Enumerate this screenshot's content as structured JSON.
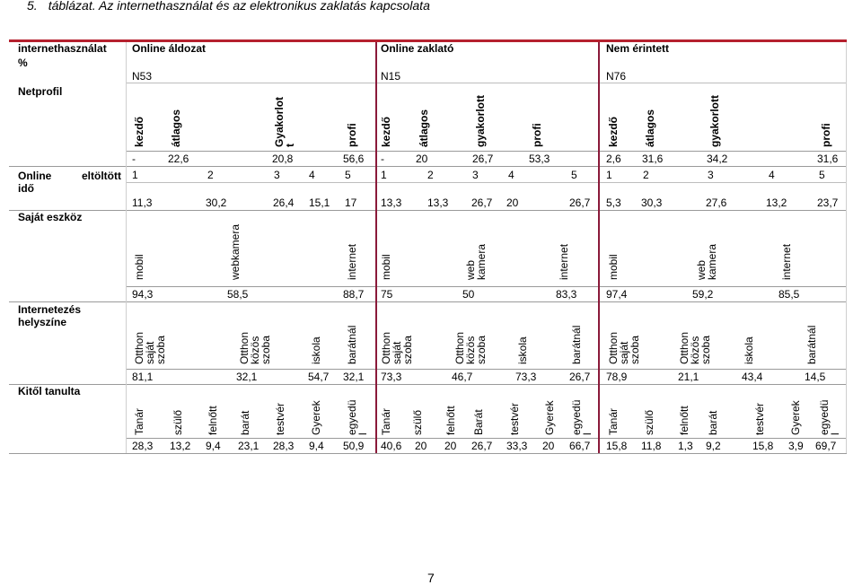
{
  "caption": {
    "number": "5.",
    "text": "táblázat. Az internethasználat és az elektronikus zaklatás kapcsolata"
  },
  "page_number": "7",
  "header": {
    "corner": [
      "internethasználat",
      "%"
    ],
    "groups": [
      {
        "title": "Online áldozat",
        "count": "N53"
      },
      {
        "title": "Online zaklató",
        "count": "N15"
      },
      {
        "title": "Nem érintett",
        "count": "N76"
      }
    ]
  },
  "sections": {
    "netprofil": {
      "label": "Netprofil",
      "g1": {
        "labels": [
          "kezdő",
          "átlagos",
          "Gyakorlot\nt",
          "profi"
        ],
        "values": [
          "-",
          "22,6",
          "20,8",
          "56,6"
        ]
      },
      "g2": {
        "labels": [
          "kezdő",
          "átlagos",
          "gyakorlott",
          "profi"
        ],
        "values": [
          "-",
          "20",
          "26,7",
          "53,3"
        ]
      },
      "g3": {
        "labels": [
          "kezdő",
          "átlagos",
          "gyakorlott",
          "profi"
        ],
        "values": [
          "2,6",
          "31,6",
          "34,2",
          "31,6"
        ]
      }
    },
    "online_ido": {
      "label": [
        "Online",
        "eltöltött",
        "idő"
      ],
      "g1": {
        "scale": [
          "1",
          "2",
          "3",
          "4",
          "5"
        ],
        "values": [
          "11,3",
          "30,2",
          "26,4",
          "15,1",
          "17"
        ]
      },
      "g2": {
        "scale": [
          "1",
          "2",
          "3",
          "4",
          "5"
        ],
        "values": [
          "13,3",
          "13,3",
          "26,7",
          "20",
          "26,7"
        ]
      },
      "g3": {
        "scale": [
          "1",
          "2",
          "3",
          "4",
          "5"
        ],
        "values": [
          "5,3",
          "30,3",
          "27,6",
          "13,2",
          "23,7"
        ]
      }
    },
    "sajat_eszkoz": {
      "label": "Saját eszköz",
      "g1": {
        "labels": [
          "mobil",
          "webkamera",
          "internet"
        ],
        "values": [
          "94,3",
          "58,5",
          "88,7"
        ]
      },
      "g2": {
        "labels": [
          "mobil",
          "web\nkamera",
          "internet"
        ],
        "values": [
          "75",
          "50",
          "83,3"
        ]
      },
      "g3": {
        "labels": [
          "mobil",
          "web\nkamera",
          "internet"
        ],
        "values": [
          "97,4",
          "59,2",
          "85,5"
        ]
      }
    },
    "helyszin": {
      "label": [
        "Internetezés",
        "helyszíne"
      ],
      "g1": {
        "labels": [
          "Otthon\nsaját\nszoba",
          "Otthon\nközös\nszoba",
          "iskola",
          "barátnál"
        ],
        "values": [
          "81,1",
          "32,1",
          "54,7",
          "32,1"
        ]
      },
      "g2": {
        "labels": [
          "Otthon\nsaját\nszoba",
          "Otthon\nközös\nszoba",
          "iskola",
          "barátnál"
        ],
        "values": [
          "73,3",
          "46,7",
          "73,3",
          "26,7"
        ]
      },
      "g3": {
        "labels": [
          "Otthon\nsaját\nszoba",
          "Otthon\nközös\nszoba",
          "iskola",
          "barátnál"
        ],
        "values": [
          "78,9",
          "21,1",
          "43,4",
          "14,5"
        ]
      }
    },
    "kitol": {
      "label": "Kitől tanulta",
      "g1": {
        "labels": [
          "Tanár",
          "szülő",
          "felnőtt",
          "barát",
          "testvér",
          "Gyerek",
          "egyedü\nl"
        ],
        "values": [
          "28,3",
          "13,2",
          "9,4",
          "23,1",
          "28,3",
          "9,4",
          "50,9"
        ]
      },
      "g2": {
        "labels": [
          "Tanár",
          "szülő",
          "felnőtt",
          "Barát",
          "testvér",
          "Gyerek",
          "egyedü\nl"
        ],
        "values": [
          "40,6",
          "20",
          "20",
          "26,7",
          "33,3",
          "20",
          "66,7"
        ]
      },
      "g3": {
        "labels": [
          "Tanár",
          "szülő",
          "felnőtt",
          "barát",
          "testvér",
          "Gyerek",
          "egyedü\nl"
        ],
        "values": [
          "15,8",
          "11,8",
          "1,3",
          "9,2",
          "15,8",
          "3,9",
          "69,7"
        ]
      }
    }
  }
}
